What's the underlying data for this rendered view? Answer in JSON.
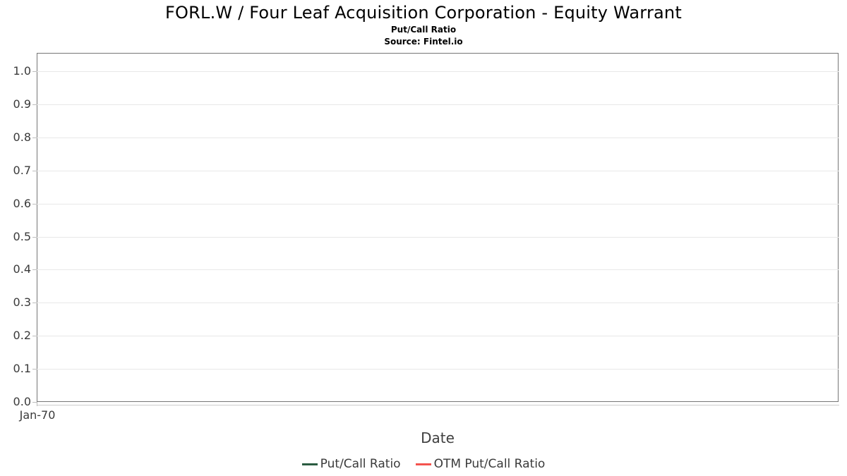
{
  "header": {
    "title": "FORL.W / Four Leaf Acquisition Corporation - Equity Warrant",
    "subtitle": "Put/Call Ratio",
    "source": "Source: Fintel.io"
  },
  "axes": {
    "x_label": "Date",
    "x_ticks": [
      "Jan-70"
    ],
    "y_ticks": [
      "1.0",
      "0.9",
      "0.8",
      "0.7",
      "0.6",
      "0.5",
      "0.4",
      "0.3",
      "0.2",
      "0.1",
      "0.0"
    ]
  },
  "legend": {
    "items": [
      {
        "label": "Put/Call Ratio",
        "color": "#2a5c41"
      },
      {
        "label": "OTM Put/Call Ratio",
        "color": "#f4534e"
      }
    ]
  },
  "colors": {
    "plot_border": "#767676",
    "gridline": "#e8e8e8",
    "tick_mark": "#bdbdbd",
    "axis_baseline": "#cccccc",
    "tick_label": "#3a3a3a",
    "axis_title": "#3f3f3f",
    "legend_text": "#3a3a3a",
    "background": "#ffffff"
  },
  "chart_data": {
    "type": "line",
    "title": "FORL.W / Four Leaf Acquisition Corporation - Equity Warrant",
    "subtitle": "Put/Call Ratio",
    "source_note": "Source: Fintel.io",
    "xlabel": "Date",
    "ylabel": "",
    "ylim": [
      0.0,
      1.05
    ],
    "yticks": [
      1.0,
      0.9,
      0.8,
      0.7,
      0.6,
      0.5,
      0.4,
      0.3,
      0.2,
      0.1,
      0.0
    ],
    "xticks": [
      "Jan-70"
    ],
    "grid": true,
    "legend_position": "bottom-center",
    "series": [
      {
        "name": "Put/Call Ratio",
        "color": "#2a5c41",
        "x": [],
        "values": []
      },
      {
        "name": "OTM Put/Call Ratio",
        "color": "#f4534e",
        "x": [],
        "values": []
      }
    ]
  }
}
